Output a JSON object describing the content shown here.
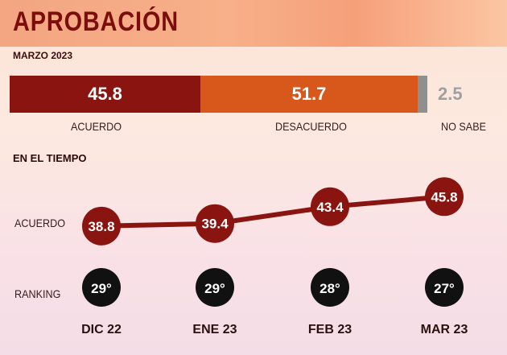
{
  "title": "APROBACIÓN",
  "subtitle": "MARZO 2023",
  "summary": {
    "acuerdo": {
      "label": "ACUERDO",
      "value": "45.8"
    },
    "desacuerdo": {
      "label": "DESACUERDO",
      "value": "51.7"
    },
    "no_sabe": {
      "label": "NO SABE",
      "value": "2.5"
    }
  },
  "section_title": "EN EL TIEMPO",
  "row_labels": {
    "acuerdo": "ACUERDO",
    "ranking": "RANKING"
  },
  "colors": {
    "dark_red": "#8a1410",
    "orange": "#d8571a",
    "gray": "#8f8f8f",
    "black": "#111111",
    "title": "#7b0d0d"
  },
  "chart_data": {
    "type": "line",
    "title": "EN EL TIEMPO",
    "categories": [
      "DIC 22",
      "ENE 23",
      "FEB 23",
      "MAR 23"
    ],
    "series": [
      {
        "name": "ACUERDO",
        "values": [
          38.8,
          39.4,
          43.4,
          45.8
        ],
        "labels": [
          "38.8",
          "39.4",
          "43.4",
          "45.8"
        ]
      }
    ],
    "ranking": [
      "29°",
      "29°",
      "28°",
      "27°"
    ],
    "ylim": [
      30,
      55
    ]
  }
}
